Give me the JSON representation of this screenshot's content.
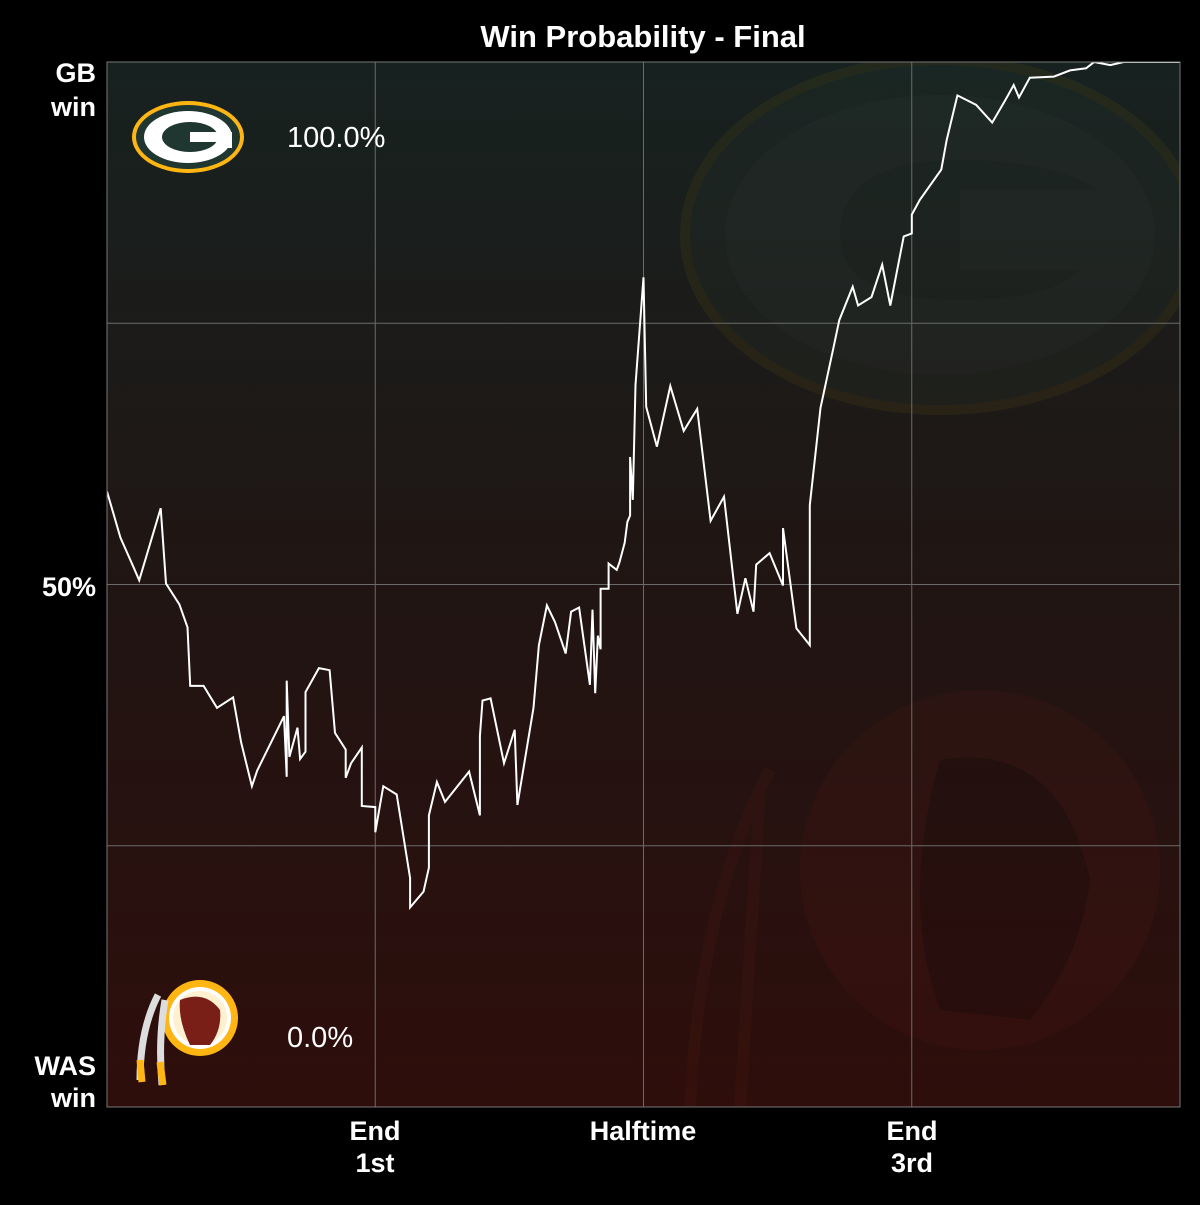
{
  "chart_data": {
    "type": "line",
    "title": "Win Probability - Final",
    "xlabel": "",
    "ylabel": "",
    "xlim": [
      0,
      4
    ],
    "ylim": [
      0,
      100
    ],
    "grid": true,
    "x_ticks": [
      {
        "value": 1,
        "line1": "End",
        "line2": "1st"
      },
      {
        "value": 2,
        "line1": "Halftime",
        "line2": ""
      },
      {
        "value": 3,
        "line1": "End",
        "line2": "3rd"
      }
    ],
    "y_ticks": [
      {
        "value": 100,
        "line1": "GB",
        "line2": "win"
      },
      {
        "value": 50,
        "line1": "50%",
        "line2": ""
      },
      {
        "value": 0,
        "line1": "WAS",
        "line2": "win"
      }
    ],
    "annotations": {
      "top_value": "100.0%",
      "bottom_value": "0.0%"
    },
    "teams": {
      "top": {
        "abbr": "GB",
        "logo": "packers-g-logo",
        "colors": [
          "#203731",
          "#FFB612"
        ]
      },
      "bottom": {
        "abbr": "WAS",
        "logo": "redskins-logo",
        "colors": [
          "#773141",
          "#FFB612"
        ]
      }
    },
    "colors": {
      "line": "#ffffff",
      "bg_top": "#172220",
      "bg_bottom": "#2e0e0b",
      "grid": "#6a6a6a"
    },
    "series": [
      {
        "x": [
          0.0,
          0.05,
          0.1,
          0.12,
          0.2,
          0.22,
          0.27,
          0.3,
          0.31,
          0.36,
          0.41,
          0.47,
          0.5,
          0.54,
          0.56,
          0.66,
          0.67,
          0.67,
          0.68,
          0.71,
          0.72,
          0.74,
          0.74,
          0.79,
          0.83,
          0.85,
          0.89,
          0.89,
          0.91,
          0.95,
          0.95,
          1.0,
          1.0,
          1.03,
          1.08,
          1.13,
          1.13,
          1.18,
          1.2,
          1.2,
          1.23,
          1.26,
          1.35,
          1.39,
          1.39,
          1.4,
          1.43,
          1.48,
          1.52,
          1.53,
          1.59,
          1.61,
          1.64,
          1.67,
          1.71,
          1.73,
          1.76,
          1.8,
          1.81,
          1.82,
          1.83,
          1.84,
          1.84,
          1.87,
          1.87,
          1.9,
          1.91,
          1.93,
          1.94,
          1.95,
          1.95,
          1.96,
          1.97,
          2.0,
          2.01,
          2.05,
          2.1,
          2.15,
          2.2,
          2.25,
          2.3,
          2.35,
          2.38,
          2.41,
          2.42,
          2.47,
          2.52,
          2.52,
          2.57,
          2.62,
          2.62,
          2.66,
          2.71,
          2.73,
          2.78,
          2.8,
          2.85,
          2.89,
          2.92,
          2.97,
          3.0,
          3.0,
          3.03,
          3.11,
          3.13,
          3.17,
          3.24,
          3.3,
          3.35,
          3.38,
          3.4,
          3.44,
          3.53,
          3.59,
          3.65,
          3.68,
          3.74,
          3.79,
          4.0
        ],
        "y": [
          58.9,
          54.5,
          51.6,
          50.4,
          57.3,
          50.1,
          48.1,
          45.9,
          40.3,
          40.3,
          38.2,
          39.2,
          34.9,
          30.7,
          32.2,
          37.4,
          31.6,
          40.8,
          33.5,
          36.3,
          33.3,
          34.0,
          39.7,
          42.0,
          41.8,
          35.8,
          34.2,
          31.5,
          32.9,
          34.4,
          28.8,
          28.7,
          26.3,
          30.7,
          29.9,
          21.9,
          19.1,
          20.6,
          22.9,
          27.9,
          31.1,
          29.2,
          32.1,
          27.9,
          35.5,
          38.9,
          39.1,
          32.9,
          36.1,
          28.9,
          38.2,
          44.2,
          48.0,
          46.4,
          43.4,
          47.4,
          47.8,
          40.4,
          47.6,
          39.6,
          45.1,
          43.8,
          49.6,
          49.6,
          52.0,
          51.4,
          52.1,
          54.0,
          56.0,
          56.6,
          62.2,
          58.1,
          69.1,
          79.4,
          67.0,
          63.2,
          69.0,
          64.7,
          66.8,
          56.1,
          58.4,
          47.2,
          50.6,
          47.4,
          51.9,
          53.0,
          49.9,
          55.4,
          45.8,
          44.2,
          57.6,
          66.9,
          72.9,
          75.3,
          78.5,
          76.7,
          77.5,
          80.6,
          76.7,
          83.3,
          83.6,
          85.4,
          86.8,
          89.7,
          92.5,
          96.8,
          95.9,
          94.2,
          96.4,
          97.8,
          96.6,
          98.5,
          98.6,
          99.2,
          99.4,
          100,
          99.7,
          100,
          100
        ]
      }
    ]
  }
}
